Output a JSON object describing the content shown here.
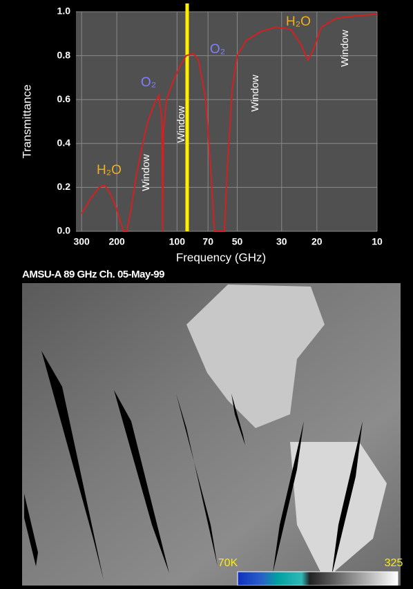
{
  "chart_data": {
    "type": "line",
    "y_label": "Transmittance",
    "x_label": "Frequency (GHz)",
    "x": [
      300,
      270,
      245,
      230,
      215,
      200,
      190,
      185,
      178,
      170,
      160,
      150,
      140,
      130,
      123,
      119,
      118,
      117,
      113,
      105,
      97,
      90,
      83,
      78,
      72,
      68,
      65,
      58,
      56,
      53,
      50,
      45,
      38,
      32,
      27,
      24,
      22.2,
      21,
      19,
      16,
      13,
      10
    ],
    "values": [
      0.08,
      0.15,
      0.2,
      0.21,
      0.17,
      0.1,
      0.03,
      0,
      0,
      0.1,
      0.25,
      0.38,
      0.5,
      0.58,
      0.62,
      0.5,
      0,
      0.45,
      0.6,
      0.68,
      0.75,
      0.8,
      0.81,
      0.78,
      0.6,
      0.3,
      0,
      0,
      0.3,
      0.65,
      0.8,
      0.87,
      0.91,
      0.93,
      0.92,
      0.85,
      0.78,
      0.82,
      0.93,
      0.97,
      0.98,
      0.99
    ],
    "color": "#d42020",
    "x_log": true,
    "xlim": [
      320,
      10
    ],
    "xticks": [
      300,
      200,
      100,
      70,
      50,
      30,
      20,
      10
    ],
    "ylim": [
      0,
      1
    ],
    "yticks": [
      {
        "value": 0,
        "label": "0.0"
      },
      0.2,
      0.4,
      0.6,
      0.8,
      {
        "value": 1,
        "label": "1.0"
      }
    ],
    "grid": true,
    "highlight_x": 89,
    "highlight_color": "#ffee00",
    "annotations": [
      "H₂O",
      "O₂",
      "O₂",
      "H₂O",
      "Window",
      "Window",
      "Window",
      "Window"
    ]
  },
  "image": {
    "title": "AMSU-A 89 GHz Ch. 05-May-99",
    "colorbar_labels": [
      "70K",
      "325"
    ]
  }
}
